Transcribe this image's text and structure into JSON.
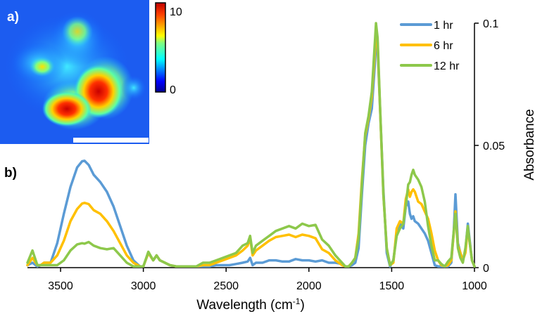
{
  "panel_a": {
    "label": "a)",
    "colorbar": {
      "max_label": "10",
      "min_label": "0",
      "range": [
        0,
        10
      ]
    },
    "scale_bar": true
  },
  "panel_b": {
    "label": "b)"
  },
  "chart_data": {
    "type": "line",
    "title": "",
    "xlabel": "Wavelength (cm",
    "xlabel_sup": "-1",
    "xlabel_end": ")",
    "ylabel": "Absorbance",
    "xlim": [
      3700,
      1000
    ],
    "ylim": [
      0,
      0.1
    ],
    "x_reversed": true,
    "y_axis_side": "right",
    "xticks": [
      3500,
      3000,
      2500,
      2000,
      1500,
      1000
    ],
    "xtick_labels": [
      "3500",
      "3000",
      "2500",
      "2000",
      "1500",
      "1000"
    ],
    "yticks": [
      0,
      0.05,
      0.1
    ],
    "ytick_labels": [
      "0",
      "0.05",
      "0.1"
    ],
    "grid": false,
    "legend_position": "top-right",
    "x": [
      3700,
      3670,
      3640,
      3620,
      3600,
      3560,
      3520,
      3480,
      3440,
      3400,
      3370,
      3355,
      3330,
      3300,
      3260,
      3220,
      3180,
      3140,
      3100,
      3060,
      3020,
      3000,
      2970,
      2940,
      2920,
      2900,
      2870,
      2840,
      2800,
      2760,
      2720,
      2680,
      2640,
      2600,
      2560,
      2520,
      2480,
      2440,
      2400,
      2370,
      2355,
      2340,
      2320,
      2280,
      2240,
      2200,
      2160,
      2120,
      2080,
      2040,
      2000,
      1960,
      1920,
      1880,
      1840,
      1800,
      1780,
      1760,
      1740,
      1720,
      1700,
      1680,
      1660,
      1640,
      1620,
      1600,
      1595,
      1585,
      1570,
      1550,
      1530,
      1510,
      1490,
      1470,
      1450,
      1430,
      1415,
      1400,
      1390,
      1380,
      1370,
      1360,
      1340,
      1320,
      1300,
      1280,
      1260,
      1240,
      1220,
      1200,
      1180,
      1160,
      1140,
      1125,
      1115,
      1100,
      1085,
      1070,
      1055,
      1040,
      1030,
      1015,
      1000
    ],
    "series": [
      {
        "name": "1 hr",
        "color": "#5B9BD5",
        "values": [
          0.001,
          0.002,
          0.0005,
          0.001,
          0.002,
          0.002,
          0.01,
          0.022,
          0.033,
          0.041,
          0.0435,
          0.0437,
          0.042,
          0.038,
          0.035,
          0.031,
          0.025,
          0.017,
          0.009,
          0.003,
          0.0005,
          0.0005,
          0.006,
          0.003,
          0.005,
          0.003,
          0.002,
          0.001,
          0.0005,
          0.0005,
          0.0005,
          0.0005,
          0.0005,
          0.0005,
          0.001,
          0.001,
          0.001,
          0.0015,
          0.002,
          0.0025,
          0.004,
          0.001,
          0.002,
          0.002,
          0.003,
          0.003,
          0.0025,
          0.0025,
          0.0035,
          0.003,
          0.003,
          0.0025,
          0.003,
          0.002,
          0.002,
          0.0015,
          0.0005,
          0.0005,
          0.001,
          0.002,
          0.008,
          0.03,
          0.05,
          0.059,
          0.065,
          0.085,
          0.094,
          0.09,
          0.065,
          0.032,
          0.006,
          0.0005,
          0.003,
          0.014,
          0.018,
          0.016,
          0.025,
          0.027,
          0.022,
          0.02,
          0.021,
          0.019,
          0.018,
          0.016,
          0.014,
          0.011,
          0.006,
          0.001,
          0.0005,
          0.0005,
          0.0005,
          0.0005,
          0.002,
          0.015,
          0.03,
          0.01,
          0.006,
          0.003,
          0.007,
          0.018,
          0.012,
          0.003,
          0.0005
        ]
      },
      {
        "name": "6 hr",
        "color": "#FFC000",
        "values": [
          0.001,
          0.004,
          0.001,
          0.001,
          0.002,
          0.002,
          0.005,
          0.011,
          0.019,
          0.024,
          0.0262,
          0.0265,
          0.026,
          0.0235,
          0.022,
          0.019,
          0.015,
          0.01,
          0.005,
          0.002,
          0.0005,
          0.0005,
          0.006,
          0.003,
          0.005,
          0.003,
          0.002,
          0.001,
          0.0005,
          0.0005,
          0.0005,
          0.0005,
          0.001,
          0.001,
          0.002,
          0.003,
          0.004,
          0.005,
          0.007,
          0.009,
          0.012,
          0.005,
          0.007,
          0.009,
          0.011,
          0.0125,
          0.013,
          0.0135,
          0.0125,
          0.0135,
          0.013,
          0.012,
          0.0075,
          0.006,
          0.003,
          0.001,
          0.0005,
          0.0005,
          0.002,
          0.004,
          0.014,
          0.036,
          0.054,
          0.061,
          0.07,
          0.09,
          0.097,
          0.092,
          0.065,
          0.03,
          0.008,
          0.001,
          0.002,
          0.016,
          0.019,
          0.018,
          0.028,
          0.032,
          0.029,
          0.031,
          0.032,
          0.031,
          0.027,
          0.026,
          0.023,
          0.02,
          0.014,
          0.007,
          0.003,
          0.001,
          0.0005,
          0.001,
          0.003,
          0.014,
          0.023,
          0.009,
          0.006,
          0.003,
          0.006,
          0.016,
          0.011,
          0.003,
          0.0005
        ]
      },
      {
        "name": "12 hr",
        "color": "#8DC84B",
        "values": [
          0.002,
          0.007,
          0.001,
          0.001,
          0.001,
          0.001,
          0.001,
          0.003,
          0.007,
          0.0095,
          0.01,
          0.0098,
          0.0105,
          0.009,
          0.008,
          0.0075,
          0.008,
          0.005,
          0.002,
          0.0005,
          0.0005,
          0.0005,
          0.0065,
          0.003,
          0.005,
          0.003,
          0.002,
          0.001,
          0.0005,
          0.0005,
          0.0005,
          0.0005,
          0.002,
          0.002,
          0.003,
          0.004,
          0.005,
          0.006,
          0.009,
          0.01,
          0.013,
          0.006,
          0.009,
          0.011,
          0.013,
          0.015,
          0.016,
          0.017,
          0.016,
          0.018,
          0.017,
          0.0175,
          0.0115,
          0.009,
          0.005,
          0.002,
          0.0005,
          0.0005,
          0.002,
          0.004,
          0.012,
          0.034,
          0.055,
          0.062,
          0.072,
          0.094,
          0.1,
          0.094,
          0.066,
          0.03,
          0.008,
          0.001,
          0.003,
          0.013,
          0.016,
          0.018,
          0.025,
          0.034,
          0.035,
          0.038,
          0.04,
          0.038,
          0.036,
          0.033,
          0.027,
          0.017,
          0.009,
          0.003,
          0.003,
          0.0015,
          0.0005,
          0.0025,
          0.004,
          0.015,
          0.022,
          0.008,
          0.004,
          0.002,
          0.008,
          0.017,
          0.011,
          0.003,
          0.0005
        ]
      }
    ]
  }
}
